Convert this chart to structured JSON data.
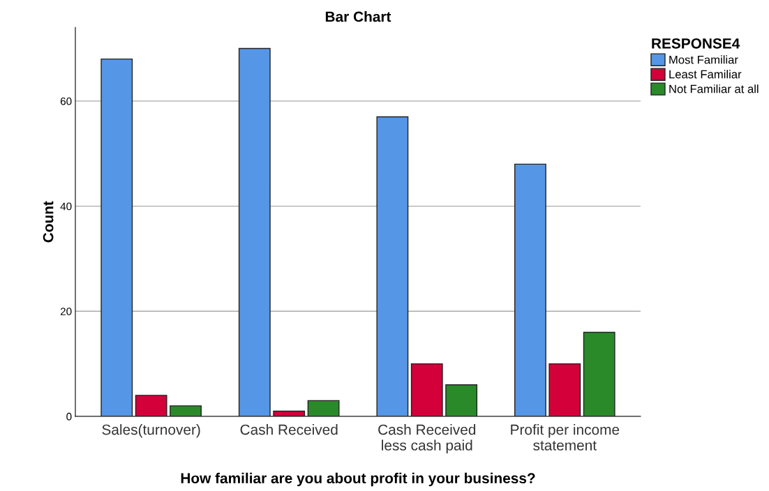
{
  "chart_data": {
    "type": "bar",
    "title": "Bar Chart",
    "xlabel": "How familiar are you about profit in your business?",
    "ylabel": "Count",
    "categories": [
      "Sales(turnover)",
      "Cash Received",
      "Cash Received\nless cash paid",
      "Profit per income\nstatement"
    ],
    "series": [
      {
        "name": "Most Familiar",
        "color": "#5596e6",
        "values": [
          68,
          70,
          57,
          48
        ]
      },
      {
        "name": "Least Familiar",
        "color": "#d3003a",
        "values": [
          4,
          1,
          10,
          10
        ]
      },
      {
        "name": "Not Familiar at all",
        "color": "#2a8a2a",
        "values": [
          2,
          3,
          6,
          16
        ]
      }
    ],
    "legend_title": "RESPONSE4",
    "legend": "right",
    "ylim": [
      0,
      74
    ],
    "yticks": [
      0,
      20,
      40,
      60
    ],
    "grid": "y"
  }
}
